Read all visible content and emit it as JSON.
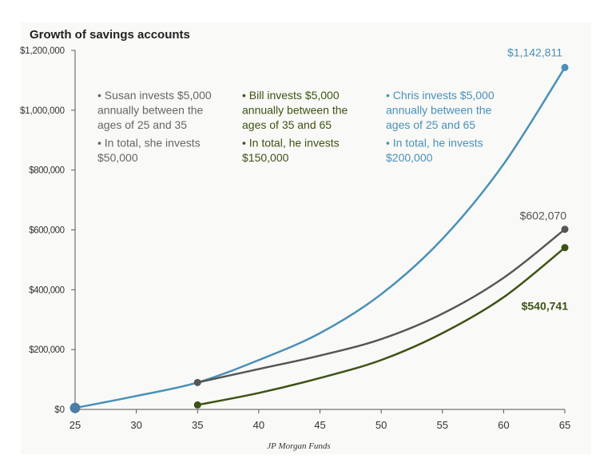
{
  "chart_data": {
    "type": "line",
    "title": "Growth of savings accounts",
    "source": "JP Morgan Funds",
    "x": [
      25,
      30,
      35,
      40,
      45,
      50,
      55,
      60,
      65
    ],
    "xlim": [
      25,
      65
    ],
    "ylim": [
      0,
      1200000
    ],
    "y_ticks": [
      "$0",
      "$200,000",
      "$400,000",
      "$600,000",
      "$800,000",
      "$1,000,000",
      "$1,200,000"
    ],
    "x_ticks": [
      "25",
      "30",
      "35",
      "40",
      "45",
      "50",
      "55",
      "60",
      "65"
    ],
    "grid": false,
    "series": [
      {
        "id": "chris",
        "color": "#4a90b8",
        "dash": false,
        "x": [
          25,
          30,
          35,
          40,
          45,
          50,
          55,
          60,
          65
        ],
        "values": [
          5000,
          45000,
          90000,
          165000,
          255000,
          385000,
          570000,
          820000,
          1142811
        ],
        "end_label": "$1,142,811"
      },
      {
        "id": "susan",
        "color": "#555555",
        "dash": true,
        "x": [
          35,
          40,
          45,
          50,
          55,
          60,
          65
        ],
        "values": [
          90000,
          135000,
          180000,
          235000,
          320000,
          440000,
          602070
        ],
        "end_label": "$602,070"
      },
      {
        "id": "bill",
        "color": "#3d5214",
        "dash": false,
        "x": [
          35,
          40,
          45,
          50,
          55,
          60,
          65
        ],
        "values": [
          15000,
          55000,
          105000,
          165000,
          255000,
          375000,
          540741
        ],
        "end_label": "$540,741"
      }
    ],
    "start_marker": {
      "x": 25,
      "y": 5000,
      "color": "#4a7ea5"
    },
    "annotations": [
      {
        "color": "#666666",
        "lines": [
          "• Susan invests $5,000",
          "  annually between the",
          "  ages of 25 and 35",
          "• In total, she invests",
          "  $50,000"
        ]
      },
      {
        "color": "#3d5214",
        "lines": [
          "• Bill invests $5,000",
          "  annually between the",
          "  ages of 35 and 65",
          "• In total, he invests",
          "  $150,000"
        ]
      },
      {
        "color": "#4a90b8",
        "lines": [
          "• Chris invests $5,000",
          "  annually between the",
          "  ages of 25 and 65",
          "• In total, he invests",
          "  $200,000"
        ]
      }
    ]
  }
}
